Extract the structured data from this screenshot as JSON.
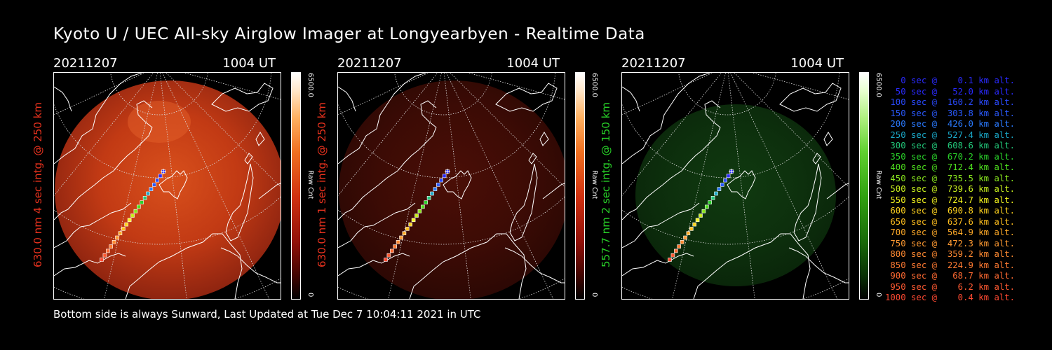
{
  "title": "Kyoto U / UEC All-sky Airglow Imager at Longyearbyen - Realtime Data",
  "footer": "Bottom side is always Sunward, Last Updated at Tue Dec  7 10:04:11 2021 in UTC",
  "panels": [
    {
      "date": "20211207",
      "time": "1004 UT",
      "ylabel": "630.0 nm 4 sec intg. @ 250 km",
      "label_color": "#e8321e",
      "cb_max": "6500.0",
      "cb_unit": "Raw Cnt",
      "cb_min": "0",
      "palette": "red",
      "brightness": "high"
    },
    {
      "date": "20211207",
      "time": "1004 UT",
      "ylabel": "630.0 nm 1 sec intg. @ 250 km",
      "label_color": "#e8321e",
      "cb_max": "6500.0",
      "cb_unit": "Raw Cnt",
      "cb_min": "0",
      "palette": "red",
      "brightness": "low"
    },
    {
      "date": "20211207",
      "time": "1004 UT",
      "ylabel": "557.7 nm 2 sec intg. @ 150 km",
      "label_color": "#28d228",
      "cb_max": "6500.0",
      "cb_unit": "Raw Cnt",
      "cb_min": "0",
      "palette": "green",
      "brightness": "low"
    }
  ],
  "legend": [
    {
      "text": "   0 sec @    0.1 km alt.",
      "color": "#2a2aff"
    },
    {
      "text": "  50 sec @   52.0 km alt.",
      "color": "#2a2aff"
    },
    {
      "text": " 100 sec @  160.2 km alt.",
      "color": "#2a4aff"
    },
    {
      "text": " 150 sec @  303.8 km alt.",
      "color": "#2a5aff"
    },
    {
      "text": " 200 sec @  426.0 km alt.",
      "color": "#2a7aff"
    },
    {
      "text": " 250 sec @  527.4 km alt.",
      "color": "#1aa8c8"
    },
    {
      "text": " 300 sec @  608.6 km alt.",
      "color": "#22c87a"
    },
    {
      "text": " 350 sec @  670.2 km alt.",
      "color": "#2ad22a"
    },
    {
      "text": " 400 sec @  712.4 km alt.",
      "color": "#4ee01e"
    },
    {
      "text": " 450 sec @  735.5 km alt.",
      "color": "#8ae81e"
    },
    {
      "text": " 500 sec @  739.6 km alt.",
      "color": "#c8f01e"
    },
    {
      "text": " 550 sec @  724.7 km alt.",
      "color": "#f5f51e"
    },
    {
      "text": " 600 sec @  690.8 km alt.",
      "color": "#ffd21e"
    },
    {
      "text": " 650 sec @  637.6 km alt.",
      "color": "#ffbe1e"
    },
    {
      "text": " 700 sec @  564.9 km alt.",
      "color": "#ffaa28"
    },
    {
      "text": " 750 sec @  472.3 km alt.",
      "color": "#ff9a32"
    },
    {
      "text": " 800 sec @  359.2 km alt.",
      "color": "#ff8a32"
    },
    {
      "text": " 850 sec @  224.9 km alt.",
      "color": "#ff7a32"
    },
    {
      "text": " 900 sec @   68.7 km alt.",
      "color": "#ff6a32"
    },
    {
      "text": " 950 sec @    6.2 km alt.",
      "color": "#ff5a32"
    },
    {
      "text": "1000 sec @    0.4 km alt.",
      "color": "#ff4a32"
    }
  ]
}
